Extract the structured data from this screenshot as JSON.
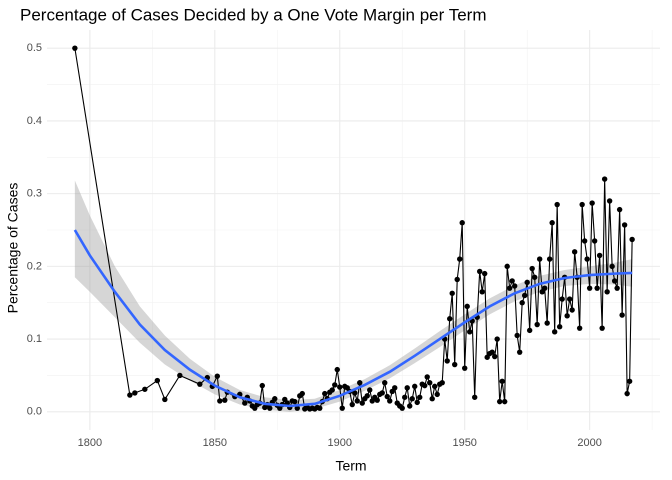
{
  "chart_data": {
    "type": "line",
    "title": "Percentage of Cases Decided by a One Vote Margin per Term",
    "x_label": "Term",
    "y_label": "Percentage of Cases",
    "xlim": [
      1782.85,
      2028.15
    ],
    "ylim": [
      -0.025,
      0.525
    ],
    "xticks": [
      1800,
      1850,
      1900,
      1950,
      2000
    ],
    "yticks": [
      {
        "value": 0,
        "label": "0.0"
      },
      0.1,
      0.2,
      0.3,
      0.4,
      0.5
    ],
    "xminor": [
      1825,
      1875,
      1925,
      1975,
      2025
    ],
    "yminor": [
      0.05,
      0.15,
      0.25,
      0.35,
      0.45
    ],
    "grid": true,
    "series": [
      {
        "color": "#000000",
        "x": [
          1794,
          1816,
          1818,
          1822,
          1827,
          1830,
          1836,
          1844,
          1847,
          1849,
          1851,
          1852,
          1854,
          1855,
          1858,
          1860,
          1862,
          1863,
          1864,
          1865,
          1866,
          1867,
          1868,
          1869,
          1870,
          1871,
          1872,
          1873,
          1874,
          1875,
          1876,
          1877,
          1878,
          1879,
          1880,
          1881,
          1882,
          1883,
          1884,
          1885,
          1886,
          1887,
          1888,
          1889,
          1890,
          1891,
          1892,
          1893,
          1894,
          1895,
          1896,
          1897,
          1898,
          1899,
          1900,
          1901,
          1902,
          1903,
          1904,
          1905,
          1906,
          1907,
          1908,
          1909,
          1910,
          1911,
          1912,
          1913,
          1914,
          1915,
          1916,
          1917,
          1918,
          1919,
          1920,
          1921,
          1922,
          1923,
          1924,
          1925,
          1926,
          1927,
          1928,
          1929,
          1930,
          1931,
          1932,
          1933,
          1934,
          1935,
          1936,
          1937,
          1938,
          1939,
          1940,
          1941,
          1942,
          1943,
          1944,
          1945,
          1946,
          1947,
          1948,
          1949,
          1950,
          1951,
          1952,
          1953,
          1954,
          1955,
          1956,
          1957,
          1958,
          1959,
          1960,
          1961,
          1962,
          1963,
          1964,
          1965,
          1966,
          1967,
          1968,
          1969,
          1970,
          1971,
          1972,
          1973,
          1974,
          1975,
          1976,
          1977,
          1978,
          1979,
          1980,
          1981,
          1982,
          1983,
          1984,
          1985,
          1986,
          1987,
          1988,
          1989,
          1990,
          1991,
          1992,
          1993,
          1994,
          1995,
          1996,
          1997,
          1998,
          1999,
          2000,
          2001,
          2002,
          2003,
          2004,
          2005,
          2006,
          2007,
          2008,
          2009,
          2010,
          2011,
          2012,
          2013,
          2014,
          2015,
          2016,
          2017
        ],
        "values": [
          0.5,
          0.023,
          0.026,
          0.031,
          0.043,
          0.017,
          0.05,
          0.038,
          0.047,
          0.035,
          0.049,
          0.015,
          0.016,
          0.027,
          0.021,
          0.024,
          0.012,
          0.02,
          0.015,
          0.008,
          0.005,
          0.01,
          0.012,
          0.036,
          0.006,
          0.01,
          0.005,
          0.013,
          0.018,
          0.009,
          0.005,
          0.01,
          0.017,
          0.012,
          0.006,
          0.015,
          0.014,
          0.005,
          0.022,
          0.025,
          0.004,
          0.006,
          0.004,
          0.005,
          0.004,
          0.006,
          0.005,
          0.014,
          0.025,
          0.018,
          0.027,
          0.03,
          0.037,
          0.058,
          0.034,
          0.005,
          0.035,
          0.033,
          0.028,
          0.01,
          0.026,
          0.015,
          0.04,
          0.012,
          0.018,
          0.022,
          0.03,
          0.015,
          0.02,
          0.016,
          0.024,
          0.026,
          0.04,
          0.021,
          0.015,
          0.028,
          0.033,
          0.012,
          0.008,
          0.005,
          0.02,
          0.033,
          0.008,
          0.018,
          0.035,
          0.013,
          0.02,
          0.038,
          0.036,
          0.048,
          0.04,
          0.018,
          0.035,
          0.024,
          0.038,
          0.04,
          0.1,
          0.07,
          0.128,
          0.163,
          0.065,
          0.182,
          0.21,
          0.26,
          0.06,
          0.145,
          0.11,
          0.125,
          0.02,
          0.13,
          0.193,
          0.165,
          0.19,
          0.075,
          0.08,
          0.082,
          0.076,
          0.1,
          0.014,
          0.042,
          0.014,
          0.2,
          0.17,
          0.18,
          0.173,
          0.105,
          0.082,
          0.15,
          0.16,
          0.178,
          0.112,
          0.197,
          0.185,
          0.12,
          0.21,
          0.165,
          0.17,
          0.122,
          0.21,
          0.26,
          0.11,
          0.285,
          0.117,
          0.155,
          0.185,
          0.132,
          0.155,
          0.14,
          0.22,
          0.185,
          0.115,
          0.285,
          0.235,
          0.21,
          0.17,
          0.287,
          0.235,
          0.17,
          0.215,
          0.115,
          0.32,
          0.165,
          0.29,
          0.2,
          0.18,
          0.17,
          0.278,
          0.133,
          0.257,
          0.025,
          0.042,
          0.237
        ]
      }
    ],
    "smooth": {
      "color": "#3366ff",
      "band_color": "#999999",
      "x": [
        1794,
        1800,
        1810,
        1820,
        1830,
        1840,
        1850,
        1860,
        1870,
        1880,
        1890,
        1900,
        1910,
        1920,
        1930,
        1940,
        1950,
        1960,
        1970,
        1980,
        1990,
        2000,
        2010,
        2017
      ],
      "values": [
        0.25,
        0.215,
        0.165,
        0.12,
        0.085,
        0.058,
        0.036,
        0.02,
        0.011,
        0.008,
        0.011,
        0.022,
        0.037,
        0.055,
        0.077,
        0.1,
        0.123,
        0.145,
        0.163,
        0.176,
        0.184,
        0.188,
        0.19,
        0.191
      ],
      "lower": [
        0.185,
        0.165,
        0.13,
        0.095,
        0.065,
        0.043,
        0.024,
        0.01,
        0.003,
        0,
        0.004,
        0.014,
        0.029,
        0.046,
        0.067,
        0.089,
        0.112,
        0.134,
        0.152,
        0.165,
        0.173,
        0.176,
        0.175,
        0.172
      ],
      "upper": [
        0.318,
        0.27,
        0.2,
        0.145,
        0.105,
        0.073,
        0.048,
        0.03,
        0.02,
        0.016,
        0.018,
        0.03,
        0.045,
        0.064,
        0.087,
        0.111,
        0.134,
        0.156,
        0.174,
        0.187,
        0.195,
        0.2,
        0.205,
        0.21
      ]
    }
  }
}
